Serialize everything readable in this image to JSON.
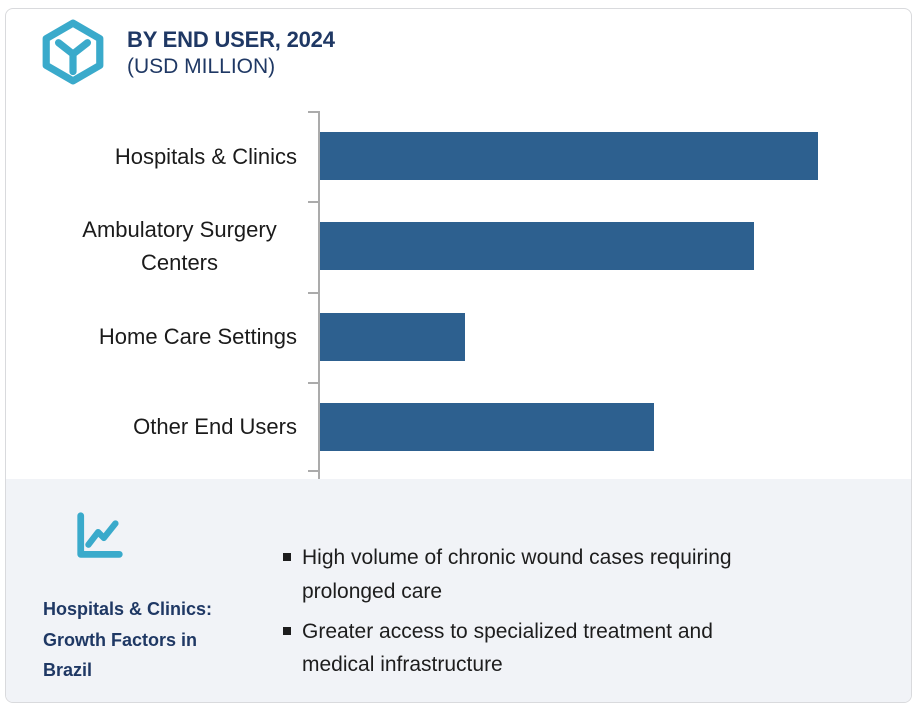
{
  "header": {
    "title": "BY END USER, 2024",
    "subtitle": "(USD MILLION)",
    "icon": "cube-hexagon",
    "colors": {
      "accent_teal": "#3AAACB",
      "navy": "#1F3864"
    }
  },
  "chart_data": {
    "type": "bar",
    "orientation": "horizontal",
    "title": "BY END USER, 2024",
    "subtitle": "(USD MILLION)",
    "categories": [
      "Hospitals & Clinics",
      "Ambulatory Surgery Centers",
      "Home Care Settings",
      "Other End Users"
    ],
    "values": [
      100,
      87,
      29,
      67
    ],
    "xlabel": "",
    "ylabel": "",
    "xlim": [
      0,
      116
    ],
    "grid": false,
    "legend": false,
    "value_labels_shown": false,
    "bar_color": "#2D608F",
    "axis_color": "#ABABAB",
    "label_color": "#1B1B1B"
  },
  "insight_panel": {
    "icon": "line-chart",
    "title": "Hospitals & Clinics: Growth Factors in Brazil",
    "background_color": "#F1F3F7",
    "bullets": [
      {
        "text": "High volume of chronic wound cases requiring prolonged care",
        "lines": [
          "High volume of chronic wound cases requiring",
          "prolonged care"
        ]
      },
      {
        "text": "Greater access to specialized treatment and medical infrastructure",
        "lines": [
          "Greater access to specialized treatment and",
          "medical infrastructure"
        ]
      }
    ]
  }
}
